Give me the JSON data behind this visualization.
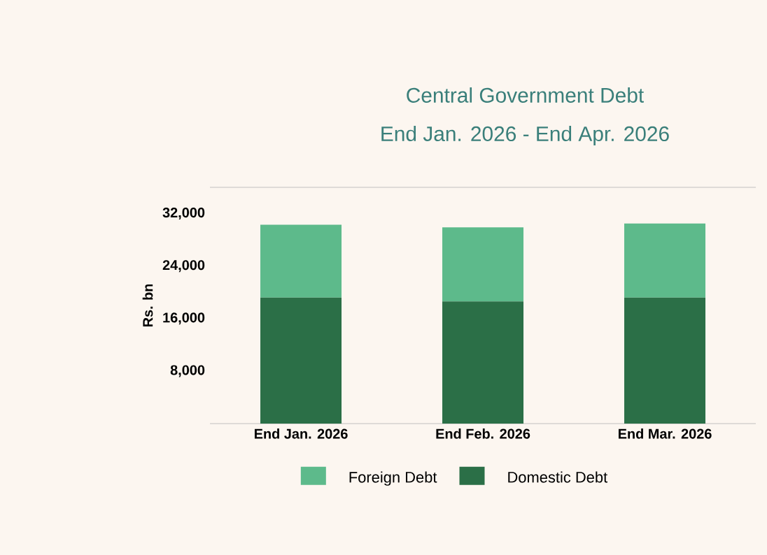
{
  "chart_data": {
    "type": "bar",
    "stacked": true,
    "title": "Central Government Debt",
    "subtitle": "End Jan. 2026  - End Apr. 2026",
    "ylabel": "Rs. bn",
    "categories": [
      "End Jan. 2026",
      "End Feb. 2026",
      "End Mar. 2026"
    ],
    "series": [
      {
        "name": "Domestic Debt",
        "color": "#2b6f47",
        "values": [
          19200,
          18600,
          19200
        ]
      },
      {
        "name": "Foreign Debt",
        "color": "#5dba8b",
        "values": [
          11100,
          11300,
          11300
        ]
      }
    ],
    "ylim": [
      0,
      36000
    ],
    "yticks": [
      {
        "value": 8000,
        "label": "8,000"
      },
      {
        "value": 16000,
        "label": "16,000"
      },
      {
        "value": 24000,
        "label": "24,000"
      },
      {
        "value": 32000,
        "label": "32,000"
      }
    ],
    "grid": false,
    "legend": "bottom"
  }
}
